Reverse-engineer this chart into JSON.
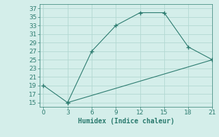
{
  "line1_x": [
    0,
    3,
    6,
    9,
    12,
    15,
    18,
    21
  ],
  "line1_y": [
    19,
    15,
    27,
    33,
    36,
    36,
    28,
    25
  ],
  "line2_x": [
    3,
    21
  ],
  "line2_y": [
    15,
    25
  ],
  "color": "#2a7a6e",
  "bg_color": "#d4eeea",
  "grid_color": "#b2d8d2",
  "xlabel": "Humidex (Indice chaleur)",
  "xlim": [
    -0.5,
    21
  ],
  "ylim": [
    14,
    38
  ],
  "xticks": [
    0,
    3,
    6,
    9,
    12,
    15,
    18,
    21
  ],
  "yticks": [
    15,
    17,
    19,
    21,
    23,
    25,
    27,
    29,
    31,
    33,
    35,
    37
  ],
  "xlabel_fontsize": 7,
  "tick_fontsize": 6.5
}
